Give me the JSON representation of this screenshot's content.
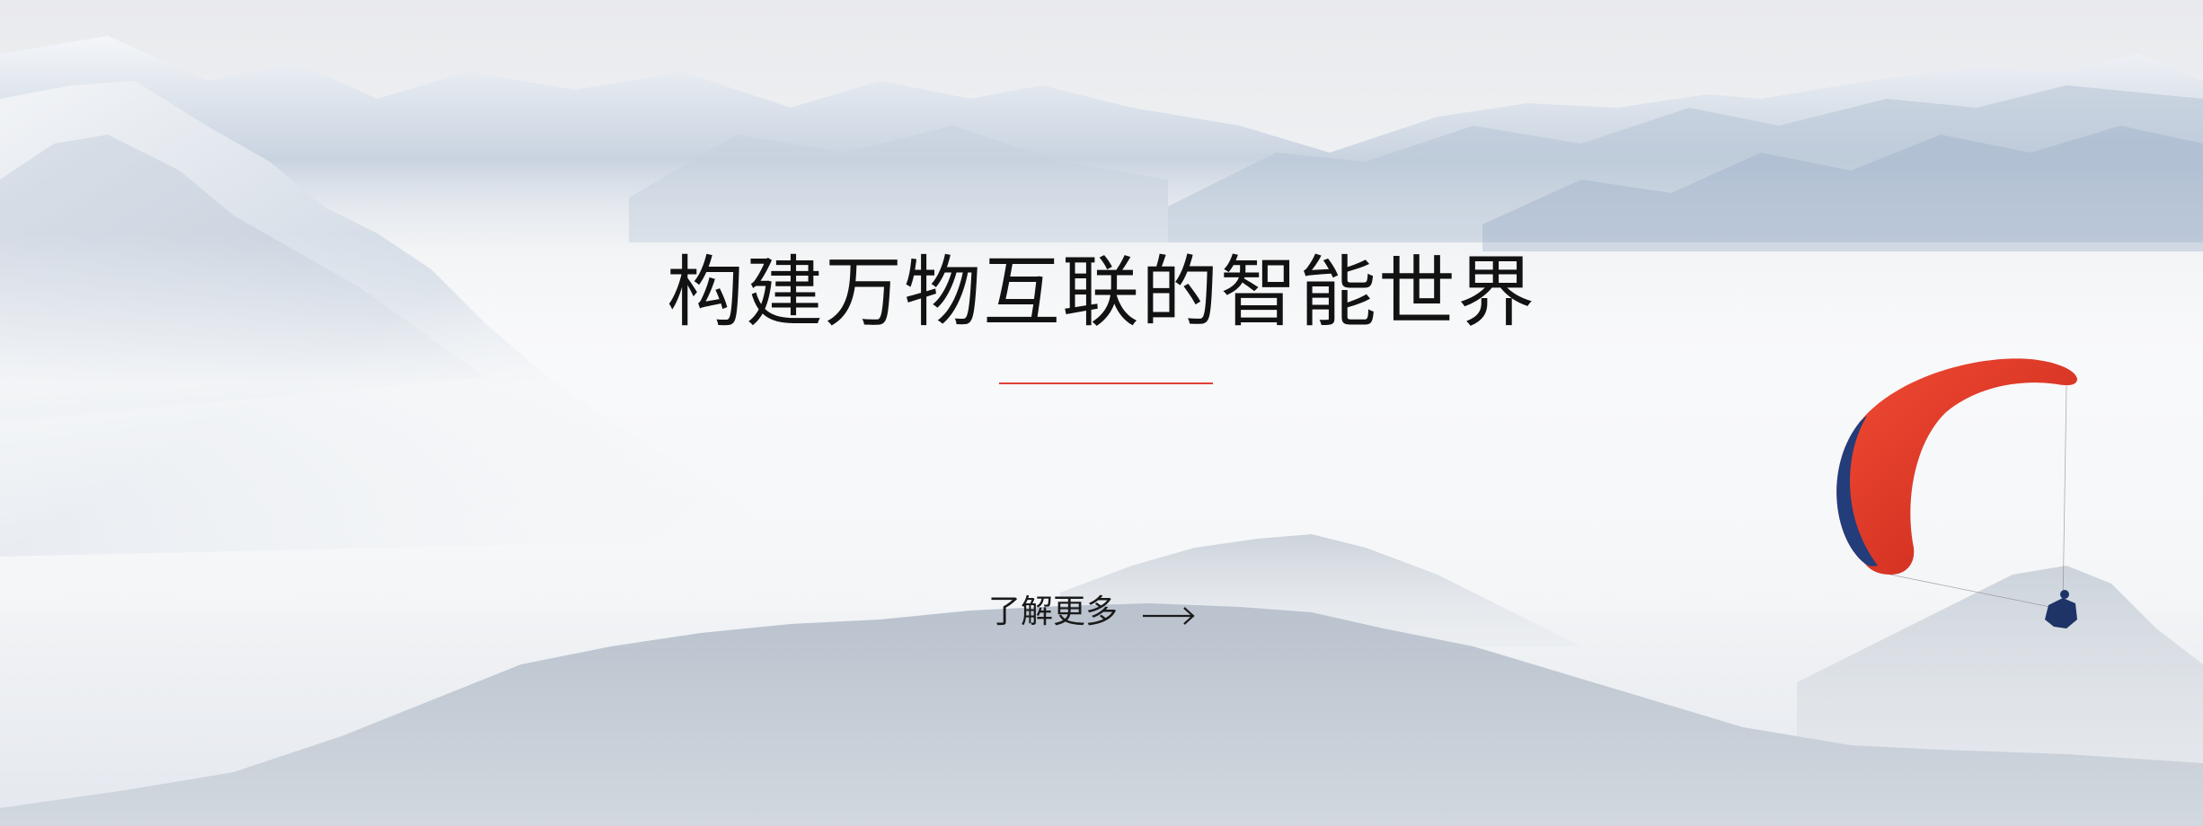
{
  "hero": {
    "headline": "构建万物互联的智能世界",
    "cta_label": "了解更多",
    "cta_icon": "arrow-right-icon",
    "accent_color": "#e0413a"
  }
}
